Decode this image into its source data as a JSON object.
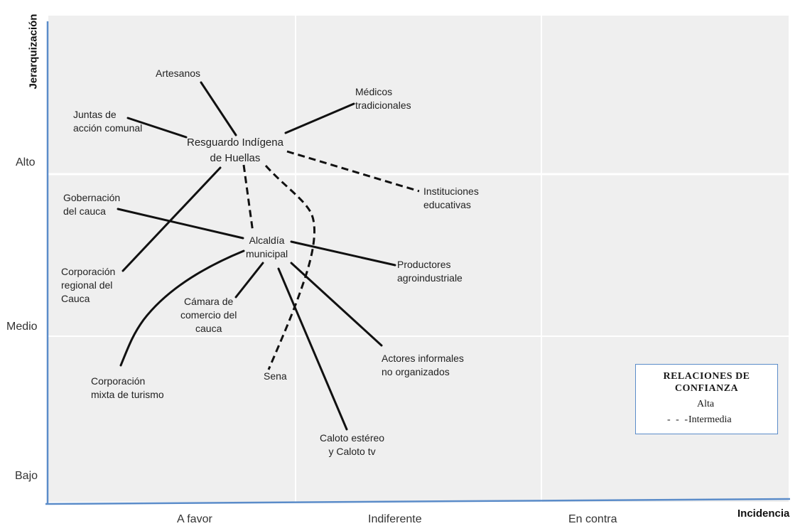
{
  "axes": {
    "y_title": "Jerarquización",
    "x_title": "Incidencia",
    "y_levels": [
      "Alto",
      "Medio",
      "Bajo"
    ],
    "x_levels": [
      "A favor",
      "Indiferente",
      "En contra"
    ]
  },
  "nodes": {
    "resguardo": "Resguardo Indígena\nde Huellas",
    "alcaldia": "Alcaldía\nmunicipal",
    "artesanos": "Artesanos",
    "medicos": "Médicos\ntradicionales",
    "juntas": "Juntas de\nacción comunal",
    "instituciones": "Instituciones\neducativas",
    "gobernacion": "Gobernación\ndel cauca",
    "productores": "Productores\nagroindustriale",
    "corp_regional": "Corporación\nregional del\nCauca",
    "camara": "Cámara de\ncomercio del\ncauca",
    "actores": "Actores informales\nno organizados",
    "corp_mixta": "Corporación\nmixta de turismo",
    "sena": "Sena",
    "caloto": "Caloto estéreo\ny Caloto tv"
  },
  "legend": {
    "title": "RELACIONES   DE\nCONFIANZA",
    "alta": "Alta",
    "intermedia": "Intermedia"
  },
  "colors": {
    "plot_bg": "#efefef",
    "axis": "#5b8cc9",
    "line": "#111111"
  }
}
